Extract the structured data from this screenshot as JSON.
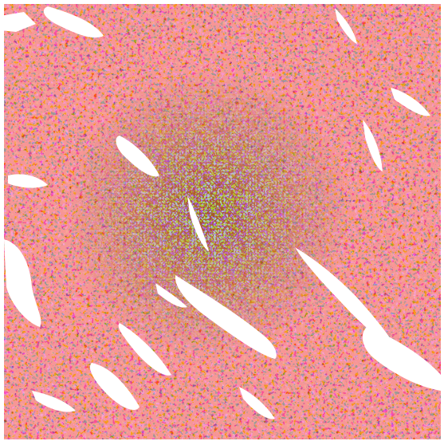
{
  "map": {
    "type": "raster-classification",
    "classes": [
      {
        "color": "#f79696"
      },
      {
        "color": "#a1521f"
      },
      {
        "color": "#c0a6d2"
      },
      {
        "color": "#9ecfd9"
      },
      {
        "color": "#ffffff"
      }
    ],
    "background_color": "#ffffff"
  }
}
